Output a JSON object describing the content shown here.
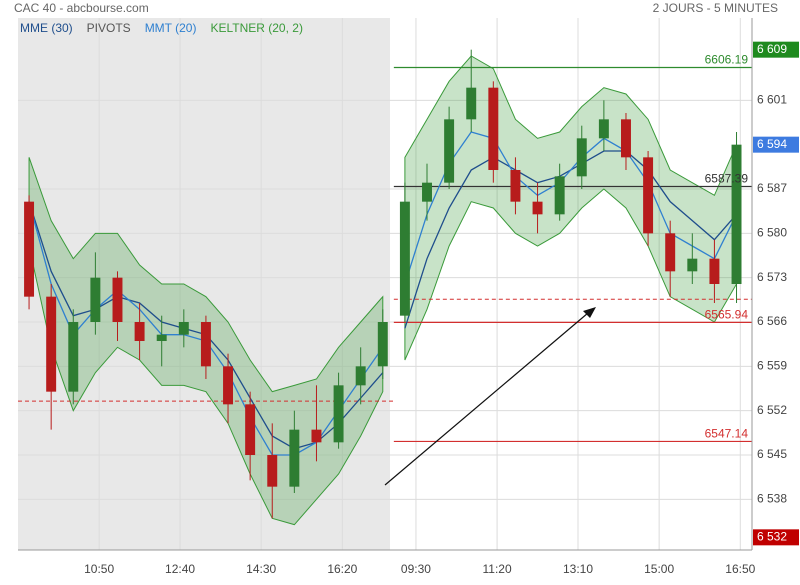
{
  "chart_data": {
    "type": "candlestick",
    "title": "CAC 40 - abcbourse.com",
    "subtitle": "2 JOURS - 5 MINUTES",
    "open": [
      6585,
      6570,
      6555,
      6566,
      6573,
      6566,
      6563,
      6564,
      6566,
      6559,
      6553,
      6545,
      6540,
      6549,
      6547,
      6556,
      6559,
      6567,
      6585,
      6588,
      6598,
      6603,
      6590,
      6585,
      6583,
      6589,
      6595,
      6598,
      6592,
      6580,
      6574,
      6576,
      6572
    ],
    "high": [
      6586,
      6572,
      6568,
      6577,
      6574,
      6569,
      6567,
      6568,
      6567,
      6561,
      6555,
      6550,
      6552,
      6556,
      6558,
      6562,
      6568,
      6588,
      6591,
      6600,
      6609,
      6604,
      6592,
      6588,
      6591,
      6597,
      6601,
      6599,
      6593,
      6582,
      6580,
      6579,
      6596
    ],
    "low": [
      6568,
      6549,
      6553,
      6564,
      6563,
      6560,
      6559,
      6562,
      6557,
      6550,
      6541,
      6535,
      6539,
      6544,
      6546,
      6553,
      6557,
      6566,
      6582,
      6587,
      6596,
      6588,
      6583,
      6580,
      6582,
      6587,
      6593,
      6590,
      6578,
      6570,
      6572,
      6569,
      6569
    ],
    "close": [
      6570,
      6555,
      6566,
      6573,
      6566,
      6563,
      6564,
      6566,
      6559,
      6553,
      6545,
      6540,
      6549,
      6547,
      6556,
      6559,
      6566,
      6585,
      6588,
      6598,
      6603,
      6590,
      6585,
      6583,
      6589,
      6595,
      6598,
      6592,
      6580,
      6574,
      6576,
      6572,
      6594
    ],
    "up_color": "#2e7d32",
    "down_color": "#b71c1c",
    "series": [
      {
        "name": "MME (30)",
        "color": "#1f4e8c",
        "values": [
          6585,
          6574,
          6567,
          6568,
          6570,
          6569,
          6566,
          6565,
          6564,
          6560,
          6554,
          6548,
          6546,
          6547,
          6550,
          6554,
          6558,
          6565,
          6576,
          6584,
          6590,
          6592,
          6590,
          6588,
          6589,
          6591,
          6593,
          6593,
          6590,
          6585,
          6582,
          6579,
          6583
        ]
      },
      {
        "name": "MMT (20)",
        "color": "#2f80d0",
        "values": [
          6585,
          6572,
          6564,
          6568,
          6571,
          6568,
          6564,
          6564,
          6563,
          6558,
          6551,
          6545,
          6545,
          6547,
          6552,
          6557,
          6562,
          6572,
          6583,
          6591,
          6596,
          6595,
          6589,
          6586,
          6588,
          6592,
          6595,
          6593,
          6588,
          6580,
          6578,
          6576,
          6583
        ]
      }
    ],
    "pivots": {
      "name": "PIVOTS",
      "color": "#555555",
      "levels": [
        {
          "value": 6606.19,
          "color": "#2e8b2e"
        },
        {
          "value": 6587.39,
          "color": "#333333"
        },
        {
          "value": 6565.94,
          "color": "#d32f2f"
        },
        {
          "value": 6547.14,
          "color": "#d32f2f"
        }
      ],
      "dashed": [
        6553.5,
        6569.6
      ]
    },
    "keltner": {
      "name": "KELTNER (20, 2)",
      "color": "#3a9a3a",
      "upper": [
        6592,
        6582,
        6576,
        6580,
        6580,
        6575,
        6572,
        6572,
        6570,
        6566,
        6560,
        6555,
        6556,
        6557,
        6562,
        6566,
        6570,
        6592,
        6598,
        6604,
        6608,
        6606,
        6598,
        6595,
        6596,
        6600,
        6603,
        6602,
        6598,
        6590,
        6588,
        6586,
        6594
      ],
      "lower": [
        6578,
        6562,
        6552,
        6558,
        6562,
        6560,
        6556,
        6556,
        6555,
        6550,
        6542,
        6535,
        6534,
        6538,
        6542,
        6548,
        6555,
        6560,
        6568,
        6578,
        6585,
        6584,
        6580,
        6578,
        6580,
        6584,
        6587,
        6584,
        6578,
        6570,
        6568,
        6566,
        6572
      ]
    },
    "price_tags": [
      {
        "value": 6609,
        "label": "6 609",
        "color": "#1e8a1e"
      },
      {
        "value": 6594,
        "label": "6 594",
        "color": "#3d7be0"
      },
      {
        "value": 6532,
        "label": "6 532",
        "color": "#c00000"
      }
    ],
    "ylim": [
      6530,
      6614
    ],
    "yticks": [
      {
        "value": 6538,
        "label": "6 538"
      },
      {
        "value": 6545,
        "label": "6 545"
      },
      {
        "value": 6552,
        "label": "6 552"
      },
      {
        "value": 6559,
        "label": "6 559"
      },
      {
        "value": 6566,
        "label": "6 566"
      },
      {
        "value": 6573,
        "label": "6 573"
      },
      {
        "value": 6580,
        "label": "6 580"
      },
      {
        "value": 6587,
        "label": "6 587"
      },
      {
        "value": 6601,
        "label": "6 601"
      }
    ],
    "xlim": [
      -0.5,
      32.7
    ],
    "xticks": [
      {
        "value": 3.17,
        "label": "10:50"
      },
      {
        "value": 6.83,
        "label": "12:40"
      },
      {
        "value": 10.5,
        "label": "14:30"
      },
      {
        "value": 14.17,
        "label": "16:20"
      },
      {
        "value": 17.5,
        "label": "09:30"
      },
      {
        "value": 21.17,
        "label": "11:20"
      },
      {
        "value": 24.83,
        "label": "13:10"
      },
      {
        "value": 28.5,
        "label": "15:00"
      },
      {
        "value": 32.17,
        "label": "16:50"
      }
    ],
    "grid": true
  }
}
